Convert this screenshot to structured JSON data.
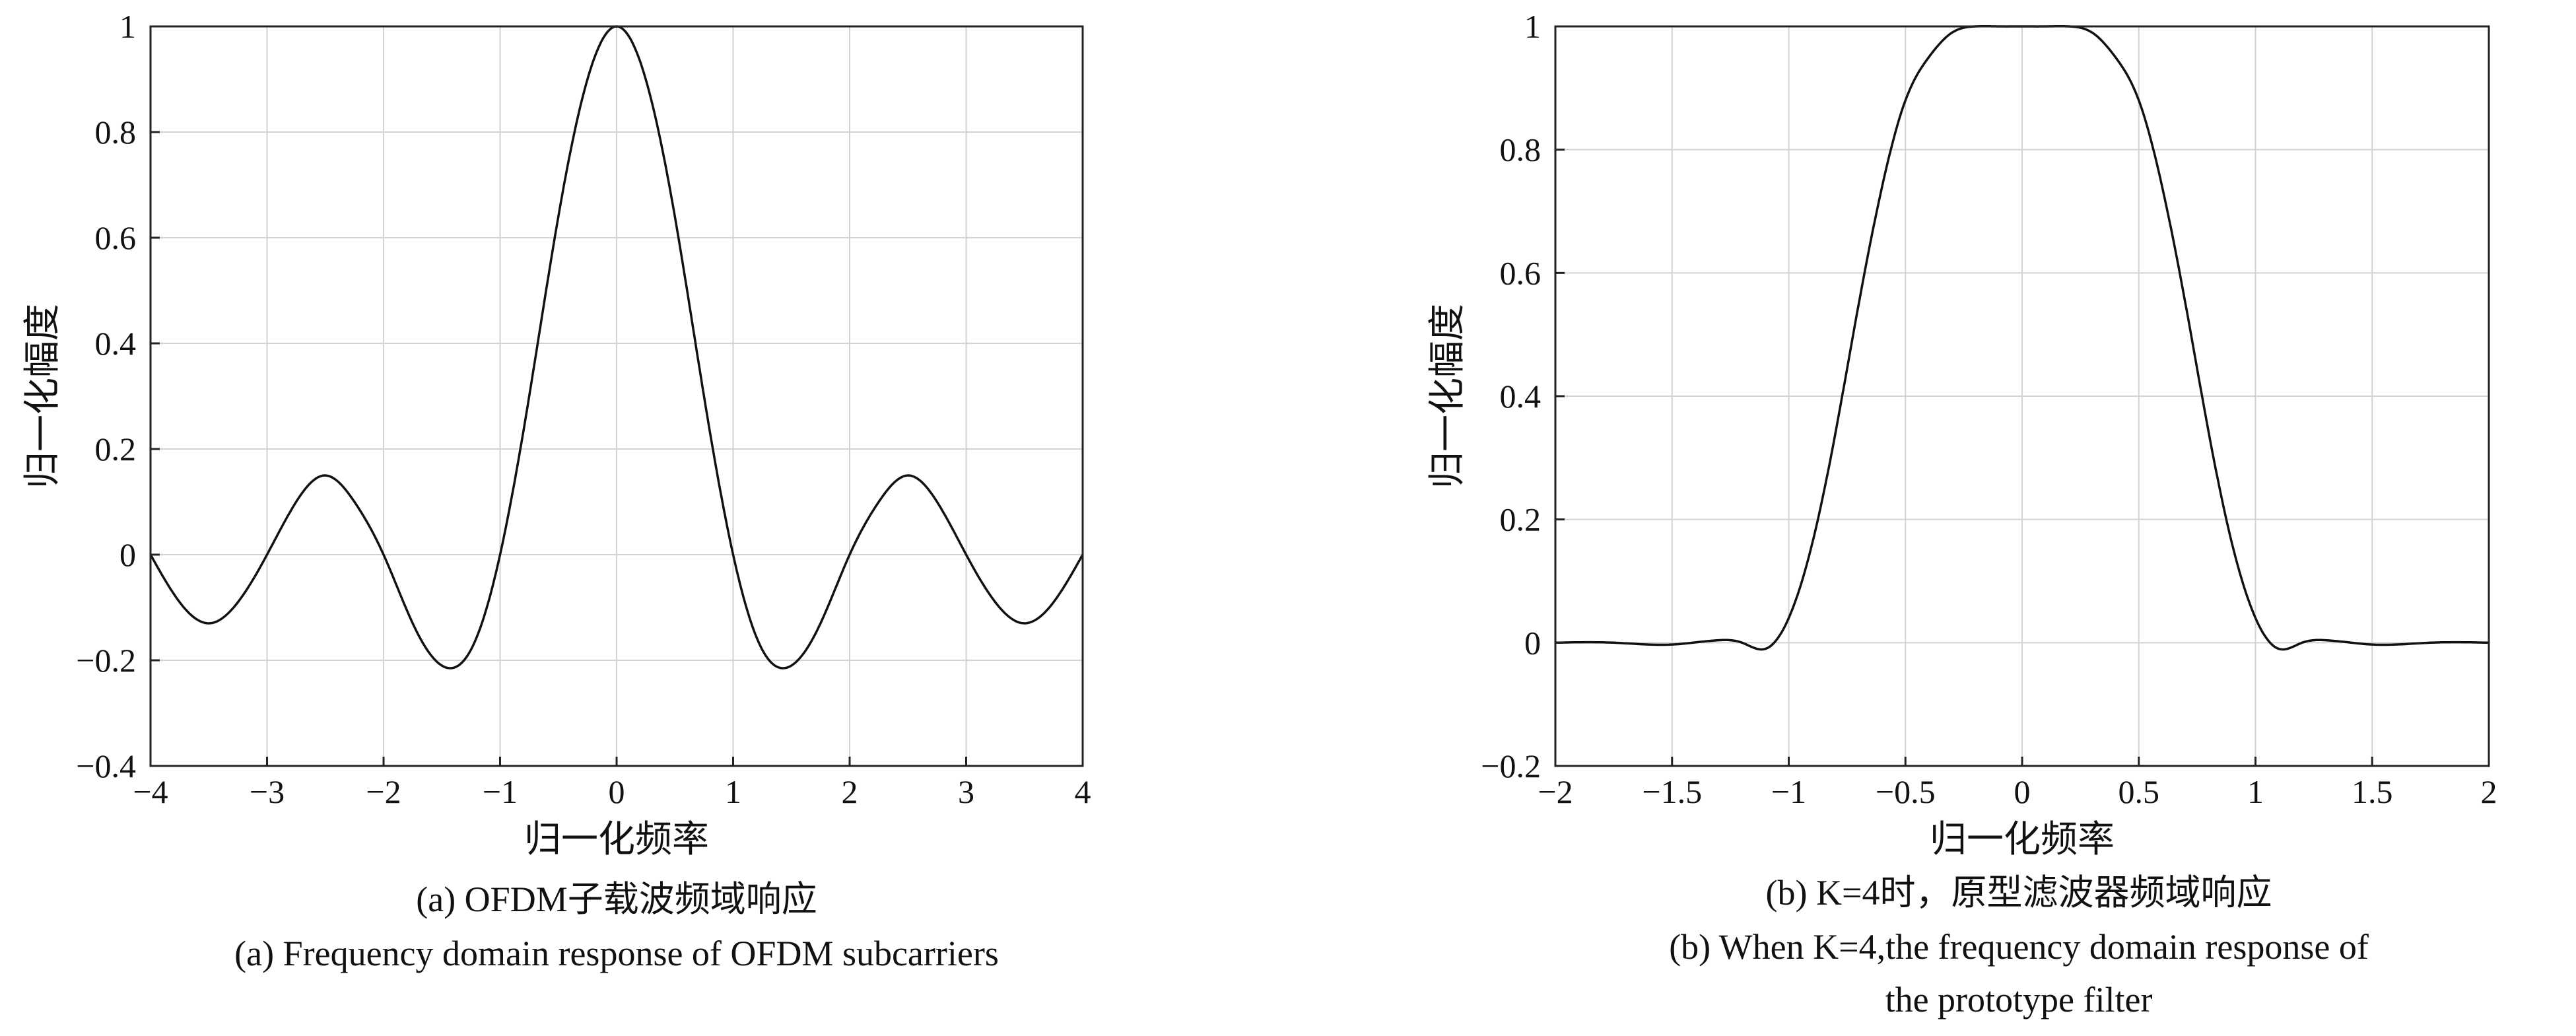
{
  "chart_data": [
    {
      "type": "line",
      "xlabel": "归一化频率",
      "ylabel": "归一化幅度",
      "xlim": [
        -4,
        4
      ],
      "ylim": [
        -0.4,
        1
      ],
      "xticks": [
        -4,
        -3,
        -2,
        -1,
        0,
        1,
        2,
        3,
        4
      ],
      "xtick_labels": [
        "−4",
        "−3",
        "−2",
        "−1",
        "0",
        "1",
        "2",
        "3",
        "4"
      ],
      "yticks": [
        -0.4,
        -0.2,
        0,
        0.2,
        0.4,
        0.6,
        0.8,
        1
      ],
      "ytick_labels": [
        "−0.4",
        "−0.2",
        "0",
        "0.2",
        "0.4",
        "0.6",
        "0.8",
        "1"
      ],
      "grid": true,
      "caption_cn": "(a) OFDM子载波频域响应",
      "caption_en": "(a) Frequency domain response of OFDM subcarriers",
      "series": [
        {
          "x": [
            -4,
            -3.75,
            -3.5,
            -3.25,
            -3,
            -2.75,
            -2.5,
            -2.25,
            -2,
            -1.75,
            -1.5,
            -1.25,
            -1,
            -0.75,
            -0.5,
            -0.25,
            0,
            0.25,
            0.5,
            0.75,
            1,
            1.25,
            1.5,
            1.75,
            2,
            2.25,
            2.5,
            2.75,
            3,
            3.25,
            3.5,
            3.75,
            4
          ],
          "y": [
            0,
            -0.09,
            -0.13,
            -0.09,
            0,
            0.1,
            0.15,
            0.1,
            0,
            -0.13,
            -0.21,
            -0.18,
            0,
            0.3,
            0.64,
            0.9,
            1,
            0.9,
            0.64,
            0.3,
            0,
            -0.18,
            -0.21,
            -0.13,
            0,
            0.1,
            0.15,
            0.1,
            0,
            -0.09,
            -0.13,
            -0.09,
            0
          ]
        }
      ]
    },
    {
      "type": "line",
      "xlabel": "归一化频率",
      "ylabel": "归一化幅度",
      "xlim": [
        -2,
        2
      ],
      "ylim": [
        -0.2,
        1
      ],
      "xticks": [
        -2,
        -1.5,
        -1,
        -0.5,
        0,
        0.5,
        1,
        1.5,
        2
      ],
      "xtick_labels": [
        "−2",
        "−1.5",
        "−1",
        "−0.5",
        "0",
        "0.5",
        "1",
        "1.5",
        "2"
      ],
      "yticks": [
        -0.2,
        0,
        0.2,
        0.4,
        0.6,
        0.8,
        1
      ],
      "ytick_labels": [
        "−0.2",
        "0",
        "0.2",
        "0.4",
        "0.6",
        "0.8",
        "1"
      ],
      "grid": true,
      "caption_cn": "(b) K=4时，原型滤波器频域响应",
      "caption_en_line1": "(b) When K=4,the frequency domain response of",
      "caption_en_line2": "the prototype filter",
      "series": [
        {
          "x": [
            -2,
            -1.75,
            -1.5,
            -1.3,
            -1.2,
            -1.1,
            -1.0,
            -0.9,
            -0.8,
            -0.7,
            -0.6,
            -0.5,
            -0.4,
            -0.3,
            -0.2,
            -0.1,
            0,
            0.1,
            0.2,
            0.3,
            0.4,
            0.5,
            0.6,
            0.7,
            0.8,
            0.9,
            1.0,
            1.1,
            1.2,
            1.3,
            1.5,
            1.75,
            2
          ],
          "y": [
            0,
            0,
            -0.003,
            0.004,
            0,
            -0.01,
            0.04,
            0.16,
            0.34,
            0.55,
            0.74,
            0.88,
            0.95,
            0.99,
            1,
            1,
            1,
            1,
            1,
            0.99,
            0.95,
            0.88,
            0.74,
            0.55,
            0.34,
            0.16,
            0.04,
            -0.01,
            0,
            0.004,
            -0.003,
            0,
            0
          ]
        }
      ]
    }
  ]
}
